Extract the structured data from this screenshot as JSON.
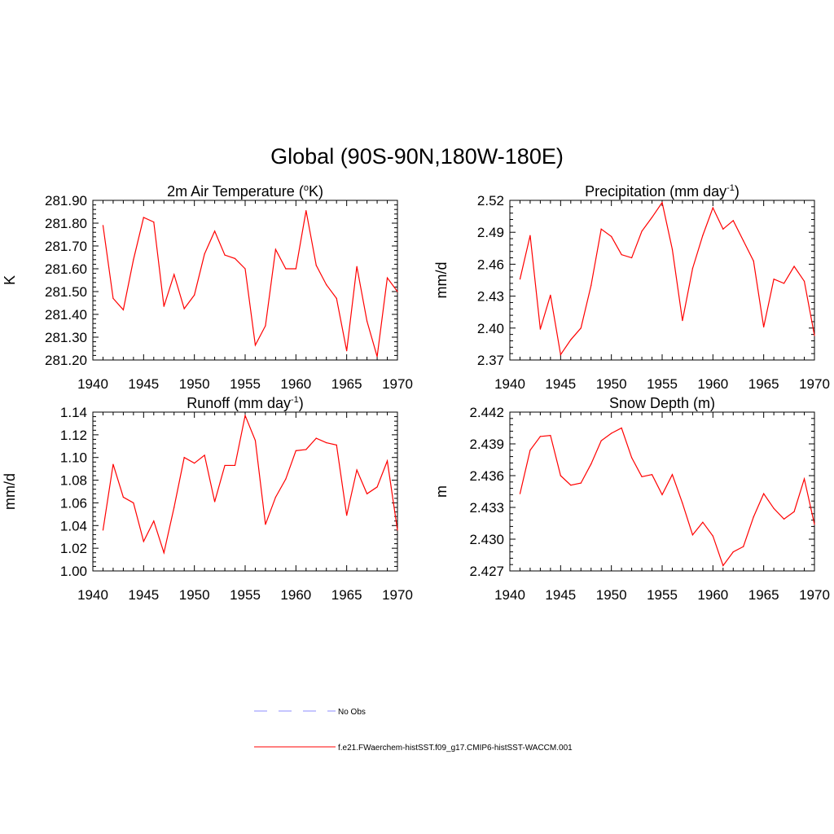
{
  "figure_title": "Global (90S-90N,180W-180E)",
  "legend": {
    "entries": [
      {
        "label": "No Obs",
        "color": "#8c8cff",
        "style": "dashed"
      },
      {
        "label": "f.e21.FWaerchem-histSST.f09_g17.CMIP6-histSST-WACCM.001",
        "color": "#ff0000",
        "style": "solid"
      }
    ]
  },
  "colors": {
    "series": "#ff0000",
    "axes": "#000000",
    "background": "#ffffff"
  },
  "chart_data": [
    {
      "type": "line",
      "title": "2m Air Temperature",
      "title_unit_pre": "(",
      "title_unit_sup": "o",
      "title_unit_post": "K)",
      "ylabel": "K",
      "xlim": [
        1940,
        1970
      ],
      "ylim": [
        281.2,
        281.9
      ],
      "xticks": [
        "1940",
        "1945",
        "1950",
        "1955",
        "1960",
        "1965",
        "1970"
      ],
      "yticks": [
        "281.20",
        "281.30",
        "281.40",
        "281.50",
        "281.60",
        "281.70",
        "281.80",
        "281.90"
      ],
      "x": [
        1941,
        1942,
        1943,
        1944,
        1945,
        1946,
        1947,
        1948,
        1949,
        1950,
        1951,
        1952,
        1953,
        1954,
        1955,
        1956,
        1957,
        1958,
        1959,
        1960,
        1961,
        1962,
        1963,
        1964,
        1965,
        1966,
        1967,
        1968,
        1969,
        1970
      ],
      "series": [
        {
          "values": [
            281.79,
            281.47,
            281.42,
            281.64,
            281.825,
            281.805,
            281.435,
            281.575,
            281.425,
            281.485,
            281.665,
            281.765,
            281.66,
            281.645,
            281.6,
            281.265,
            281.35,
            281.685,
            281.6,
            281.6,
            281.855,
            281.615,
            281.53,
            281.47,
            281.24,
            281.61,
            281.37,
            281.215,
            281.56,
            281.5
          ]
        }
      ]
    },
    {
      "type": "line",
      "title": "Precipitation",
      "title_unit_pre": "(mm day",
      "title_unit_sup": "-1",
      "title_unit_post": ")",
      "ylabel": "mm/d",
      "xlim": [
        1940,
        1970
      ],
      "ylim": [
        2.37,
        2.52
      ],
      "xticks": [
        "1940",
        "1945",
        "1950",
        "1955",
        "1960",
        "1965",
        "1970"
      ],
      "yticks": [
        "2.37",
        "2.40",
        "2.43",
        "2.46",
        "2.49",
        "2.52"
      ],
      "x": [
        1941,
        1942,
        1943,
        1944,
        1945,
        1946,
        1947,
        1948,
        1949,
        1950,
        1951,
        1952,
        1953,
        1954,
        1955,
        1956,
        1957,
        1958,
        1959,
        1960,
        1961,
        1962,
        1963,
        1964,
        1965,
        1966,
        1967,
        1968,
        1969,
        1970
      ],
      "series": [
        {
          "values": [
            2.446,
            2.487,
            2.399,
            2.431,
            2.375,
            2.389,
            2.4,
            2.44,
            2.493,
            2.486,
            2.469,
            2.466,
            2.491,
            2.504,
            2.518,
            2.474,
            2.407,
            2.456,
            2.487,
            2.513,
            2.493,
            2.501,
            2.482,
            2.463,
            2.401,
            2.446,
            2.442,
            2.458,
            2.444,
            2.393
          ]
        }
      ]
    },
    {
      "type": "line",
      "title": "Runoff",
      "title_unit_pre": "(mm day",
      "title_unit_sup": "-1",
      "title_unit_post": ")",
      "ylabel": "mm/d",
      "xlim": [
        1940,
        1970
      ],
      "ylim": [
        1.0,
        1.14
      ],
      "xticks": [
        "1940",
        "1945",
        "1950",
        "1955",
        "1960",
        "1965",
        "1970"
      ],
      "yticks": [
        "1.00",
        "1.02",
        "1.04",
        "1.06",
        "1.08",
        "1.10",
        "1.12",
        "1.14"
      ],
      "x": [
        1941,
        1942,
        1943,
        1944,
        1945,
        1946,
        1947,
        1948,
        1949,
        1950,
        1951,
        1952,
        1953,
        1954,
        1955,
        1956,
        1957,
        1958,
        1959,
        1960,
        1961,
        1962,
        1963,
        1964,
        1965,
        1966,
        1967,
        1968,
        1969,
        1970
      ],
      "series": [
        {
          "values": [
            1.036,
            1.094,
            1.065,
            1.06,
            1.026,
            1.044,
            1.016,
            1.056,
            1.1,
            1.095,
            1.102,
            1.061,
            1.093,
            1.093,
            1.137,
            1.115,
            1.041,
            1.065,
            1.081,
            1.106,
            1.107,
            1.117,
            1.113,
            1.111,
            1.049,
            1.089,
            1.068,
            1.074,
            1.097,
            1.036
          ]
        }
      ]
    },
    {
      "type": "line",
      "title": "Snow Depth (m)",
      "ylabel": "m",
      "xlim": [
        1940,
        1970
      ],
      "ylim": [
        2.427,
        2.442
      ],
      "xticks": [
        "1940",
        "1945",
        "1950",
        "1955",
        "1960",
        "1965",
        "1970"
      ],
      "yticks": [
        "2.427",
        "2.430",
        "2.433",
        "2.436",
        "2.439",
        "2.442"
      ],
      "x": [
        1941,
        1942,
        1943,
        1944,
        1945,
        1946,
        1947,
        1948,
        1949,
        1950,
        1951,
        1952,
        1953,
        1954,
        1955,
        1956,
        1957,
        1958,
        1959,
        1960,
        1961,
        1962,
        1963,
        1964,
        1965,
        1966,
        1967,
        1968,
        1969,
        1970
      ],
      "series": [
        {
          "values": [
            2.4343,
            2.4384,
            2.4397,
            2.4398,
            2.436,
            2.4351,
            2.4353,
            2.4371,
            2.4393,
            2.44,
            2.4405,
            2.4377,
            2.4359,
            2.4361,
            2.4342,
            2.4361,
            2.4334,
            2.4304,
            2.4316,
            2.4303,
            2.4275,
            2.4288,
            2.4293,
            2.4321,
            2.4343,
            2.4329,
            2.4319,
            2.4326,
            2.4357,
            2.4314
          ]
        }
      ]
    }
  ]
}
